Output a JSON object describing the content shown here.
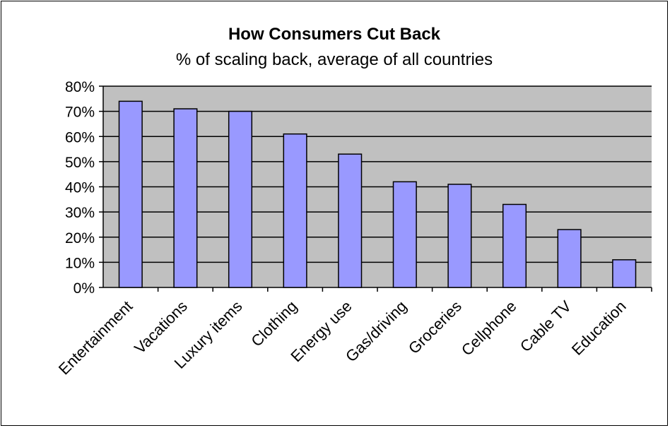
{
  "chart_data": {
    "type": "bar",
    "title": "How Consumers Cut Back",
    "subtitle": "% of scaling back, average of all countries",
    "categories": [
      "Entertainment",
      "Vacations",
      "Luxury items",
      "Clothing",
      "Energy use",
      "Gas/driving",
      "Groceries",
      "Cellphone",
      "Cable TV",
      "Education"
    ],
    "values": [
      74,
      71,
      70,
      61,
      53,
      42,
      41,
      33,
      23,
      11
    ],
    "ylim": [
      0,
      80
    ],
    "yticks": [
      0,
      10,
      20,
      30,
      40,
      50,
      60,
      70,
      80
    ],
    "ytick_labels": [
      "0%",
      "10%",
      "20%",
      "30%",
      "40%",
      "50%",
      "60%",
      "70%",
      "80%"
    ],
    "xlabel": "",
    "ylabel": "",
    "grid": true,
    "colors": {
      "bar": "#9999ff",
      "plot_background": "#c0c0c0",
      "gridline": "#000000"
    }
  }
}
